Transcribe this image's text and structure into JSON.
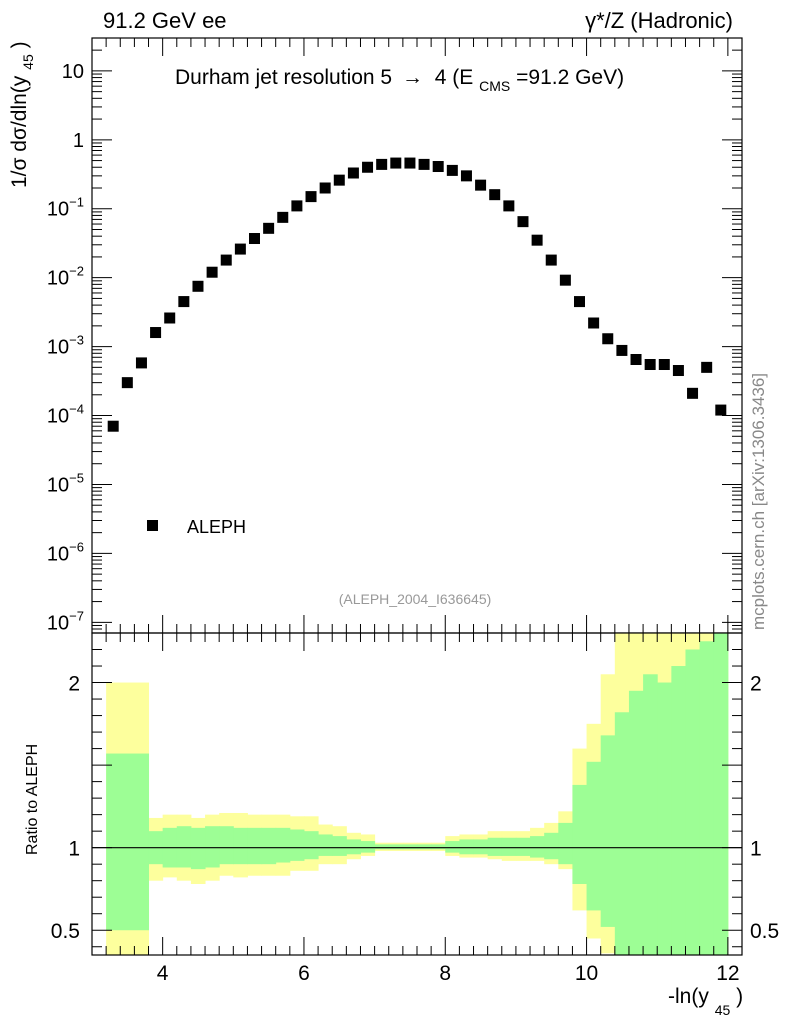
{
  "header": {
    "left_label": "91.2 GeV ee",
    "right_label": "γ*/Z (Hadronic)"
  },
  "side_label": "mcplots.cern.ch [arXiv:1306.3436]",
  "chart_data": [
    {
      "type": "scatter",
      "title_main": "Durham jet resolution 5",
      "title_arrow": "→",
      "title_rest_before_sub": "4 (E",
      "title_sub": "CMS",
      "title_rest_after_sub": "=91.2 GeV)",
      "ylabel_main": "1/σ  dσ/dln(y",
      "ylabel_sub": "45",
      "ylabel_close": ")",
      "yscale": "log",
      "xlim": [
        3.0,
        12.2
      ],
      "ylim": [
        7e-08,
        30
      ],
      "y_ticks": [
        {
          "value": 10,
          "base": "10",
          "exp": ""
        },
        {
          "value": 1,
          "base": "1",
          "exp": ""
        },
        {
          "value": 0.1,
          "base": "10",
          "exp": "−1"
        },
        {
          "value": 0.01,
          "base": "10",
          "exp": "−2"
        },
        {
          "value": 0.001,
          "base": "10",
          "exp": "−3"
        },
        {
          "value": 0.0001,
          "base": "10",
          "exp": "−4"
        },
        {
          "value": 1e-05,
          "base": "10",
          "exp": "−5"
        },
        {
          "value": 1e-06,
          "base": "10",
          "exp": "−6"
        },
        {
          "value": 1e-07,
          "base": "10",
          "exp": "−7"
        }
      ],
      "legend": {
        "label": "ALEPH",
        "placement": "bottom-left"
      },
      "annotation": "(ALEPH_2004_I636645)",
      "series": [
        {
          "name": "ALEPH",
          "x": [
            3.3,
            3.5,
            3.7,
            3.9,
            4.1,
            4.3,
            4.5,
            4.7,
            4.9,
            5.1,
            5.3,
            5.5,
            5.7,
            5.9,
            6.1,
            6.3,
            6.5,
            6.7,
            6.9,
            7.1,
            7.3,
            7.5,
            7.7,
            7.9,
            8.1,
            8.3,
            8.5,
            8.7,
            8.9,
            9.1,
            9.3,
            9.5,
            9.7,
            9.9,
            10.1,
            10.3,
            10.5,
            10.7,
            10.9,
            11.1,
            11.3,
            11.5,
            11.7,
            11.9
          ],
          "y": [
            7e-05,
            0.0003,
            0.00058,
            0.0016,
            0.0026,
            0.0045,
            0.0075,
            0.012,
            0.018,
            0.026,
            0.037,
            0.052,
            0.075,
            0.11,
            0.15,
            0.2,
            0.26,
            0.33,
            0.4,
            0.44,
            0.46,
            0.46,
            0.44,
            0.41,
            0.36,
            0.3,
            0.22,
            0.16,
            0.11,
            0.065,
            0.035,
            0.018,
            0.0092,
            0.0045,
            0.0022,
            0.0013,
            0.00088,
            0.00065,
            0.00055,
            0.00055,
            0.00045,
            0.00021,
            0.0005,
            0.00012
          ]
        }
      ]
    },
    {
      "type": "area",
      "ylabel": "Ratio to ALEPH",
      "xlabel_main": "-ln(y",
      "xlabel_sub": "45",
      "xlabel_close": ")",
      "xlim": [
        3.0,
        12.2
      ],
      "ylim": [
        0.35,
        2.3
      ],
      "x_ticks": [
        4,
        6,
        8,
        10,
        12
      ],
      "y_ticks": [
        0.5,
        1,
        2
      ],
      "reference_line": 1,
      "band_colors": {
        "inner": "#9dfe95",
        "outer": "#fdff9d"
      },
      "bands": {
        "edges": [
          3.2,
          3.8,
          4.0,
          4.2,
          4.4,
          4.6,
          4.8,
          5.0,
          5.2,
          5.4,
          5.6,
          5.8,
          6.0,
          6.2,
          6.4,
          6.6,
          6.8,
          7.0,
          7.2,
          7.4,
          7.6,
          7.8,
          8.0,
          8.2,
          8.4,
          8.6,
          8.8,
          9.0,
          9.2,
          9.4,
          9.6,
          9.8,
          10.0,
          10.2,
          10.4,
          10.6,
          10.8,
          11.0,
          11.2,
          11.4,
          11.6,
          11.8,
          12.0
        ],
        "inner_lo": [
          0.5,
          0.9,
          0.88,
          0.88,
          0.87,
          0.88,
          0.9,
          0.9,
          0.9,
          0.9,
          0.91,
          0.92,
          0.93,
          0.95,
          0.95,
          0.96,
          0.97,
          0.99,
          0.99,
          0.99,
          0.99,
          0.99,
          0.97,
          0.96,
          0.96,
          0.95,
          0.95,
          0.95,
          0.94,
          0.93,
          0.9,
          0.78,
          0.62,
          0.52,
          0.35,
          0.35,
          0.35,
          0.35,
          0.35,
          0.35,
          0.35,
          0.35
        ],
        "inner_hi": [
          1.57,
          1.1,
          1.12,
          1.13,
          1.12,
          1.13,
          1.13,
          1.12,
          1.12,
          1.12,
          1.12,
          1.11,
          1.1,
          1.08,
          1.07,
          1.05,
          1.04,
          1.02,
          1.02,
          1.02,
          1.02,
          1.02,
          1.04,
          1.05,
          1.05,
          1.06,
          1.06,
          1.06,
          1.07,
          1.09,
          1.15,
          1.38,
          1.52,
          1.68,
          1.82,
          1.95,
          2.05,
          2.0,
          2.1,
          2.2,
          2.25,
          2.3
        ],
        "outer_lo": [
          0.35,
          0.8,
          0.82,
          0.8,
          0.78,
          0.8,
          0.83,
          0.82,
          0.83,
          0.83,
          0.83,
          0.86,
          0.86,
          0.9,
          0.9,
          0.93,
          0.95,
          0.98,
          0.98,
          0.98,
          0.98,
          0.98,
          0.95,
          0.94,
          0.94,
          0.93,
          0.92,
          0.92,
          0.92,
          0.9,
          0.87,
          0.62,
          0.45,
          0.36,
          0.35,
          0.35,
          0.35,
          0.35,
          0.35,
          0.35,
          0.35,
          0.35
        ],
        "outer_hi": [
          2.0,
          1.18,
          1.2,
          1.2,
          1.18,
          1.2,
          1.21,
          1.21,
          1.2,
          1.2,
          1.2,
          1.19,
          1.19,
          1.14,
          1.13,
          1.09,
          1.08,
          1.03,
          1.03,
          1.03,
          1.03,
          1.03,
          1.07,
          1.08,
          1.08,
          1.1,
          1.1,
          1.1,
          1.12,
          1.15,
          1.22,
          1.6,
          1.75,
          2.05,
          2.3,
          2.3,
          2.3,
          2.3,
          2.3,
          2.3,
          2.3,
          2.3
        ]
      }
    }
  ]
}
